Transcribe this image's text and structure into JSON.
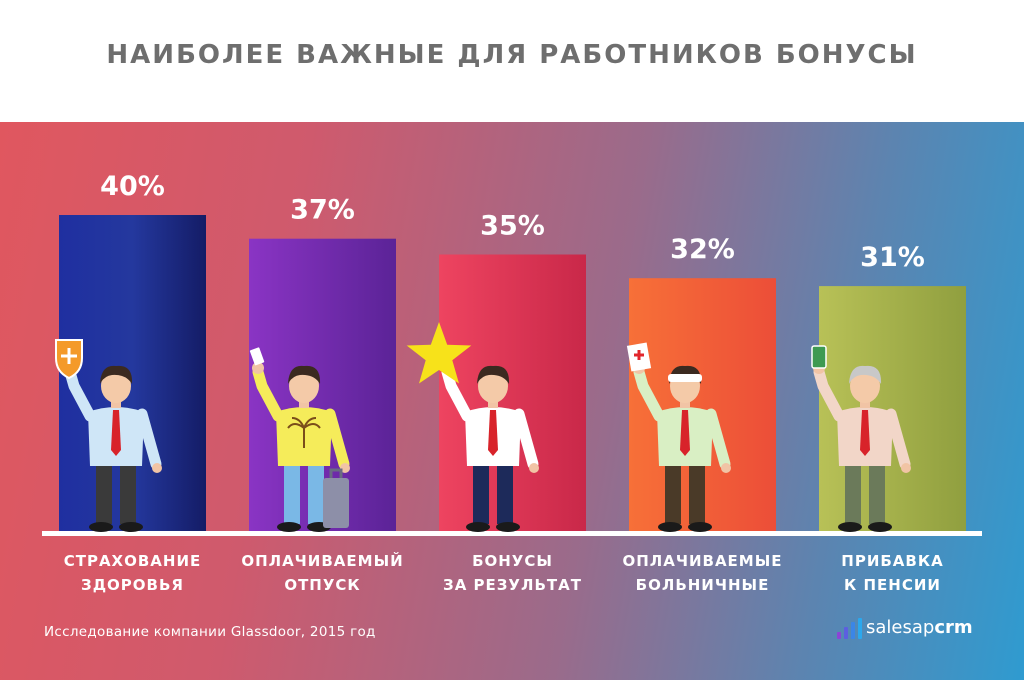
{
  "title": "НАИБОЛЕЕ ВАЖНЫЕ ДЛЯ РАБОТНИКОВ БОНУСЫ",
  "source": "Исследование компании Glassdoor, 2015 год",
  "brand": {
    "name_part1": "salesap",
    "name_part2": "crm"
  },
  "colors": {
    "bar_health": "#1c2a8c",
    "bar_vacation": "#7a2fb0",
    "bar_results": "#e43a56",
    "bar_sick": "#f3603a",
    "bar_pension": "#a8b44a"
  },
  "chart_data": {
    "type": "bar",
    "categories": [
      [
        "СТРАХОВАНИЕ",
        "ЗДОРОВЬЯ"
      ],
      [
        "ОПЛАЧИВАЕМЫЙ",
        "ОТПУСК"
      ],
      [
        "БОНУСЫ",
        "ЗА РЕЗУЛЬТАТ"
      ],
      [
        "ОПЛАЧИВАЕМЫЕ",
        "БОЛЬНИЧНЫЕ"
      ],
      [
        "ПРИБАВКА",
        "К ПЕНСИИ"
      ]
    ],
    "values": [
      40,
      37,
      35,
      32,
      31
    ],
    "value_labels": [
      "40%",
      "37%",
      "35%",
      "32%",
      "31%"
    ],
    "unit": "%",
    "icons": [
      "shield-plus-icon",
      "airplane-ticket-icon",
      "star-icon",
      "medical-card-icon",
      "money-banknote-icon"
    ],
    "grid": false,
    "legend": "none"
  }
}
